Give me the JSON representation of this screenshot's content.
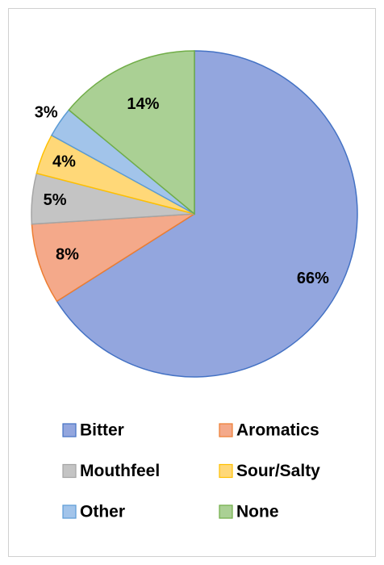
{
  "chart_data": {
    "type": "pie",
    "categories": [
      "Bitter",
      "Aromatics",
      "Mouthfeel",
      "Sour/Salty",
      "Other",
      "None"
    ],
    "values": [
      66,
      8,
      5,
      4,
      3,
      14
    ],
    "value_labels": [
      "66%",
      "8%",
      "5%",
      "4%",
      "3%",
      "14%"
    ],
    "colors": [
      "#93a6de",
      "#f4a98a",
      "#c4c4c4",
      "#ffd878",
      "#a2c4ea",
      "#aad094"
    ],
    "edge_colors": [
      "#4472c4",
      "#ed7d31",
      "#a5a5a5",
      "#ffc000",
      "#5b9bd5",
      "#70ad47"
    ],
    "legend": "bottom"
  }
}
